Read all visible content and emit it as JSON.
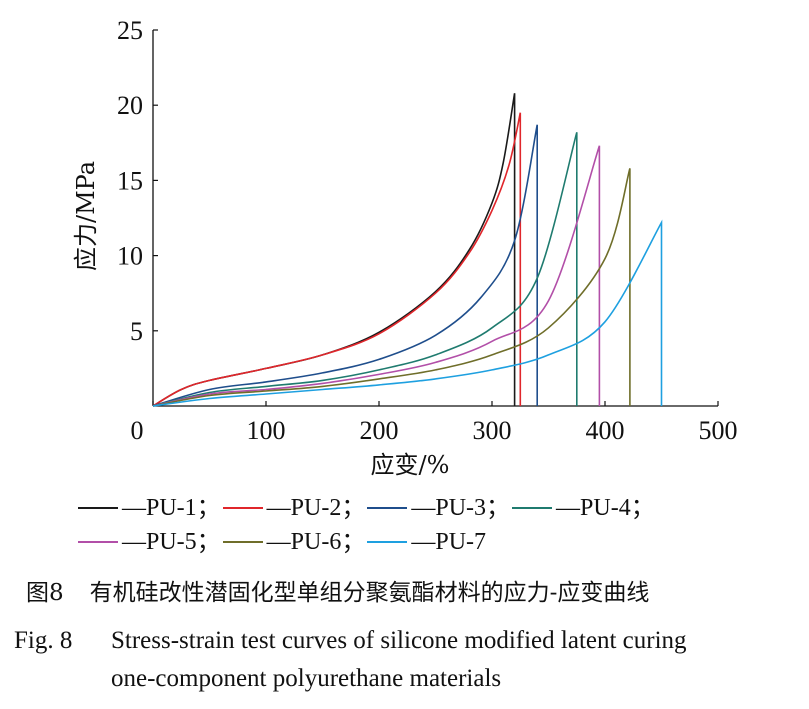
{
  "chart_data": {
    "type": "line",
    "xlabel": "应变/%",
    "ylabel": "应力/MPa",
    "xlim": [
      0,
      500
    ],
    "ylim": [
      0,
      25
    ],
    "xticks": [
      "0",
      "100",
      "200",
      "300",
      "400",
      "500"
    ],
    "yticks": [
      "5",
      "10",
      "15",
      "20",
      "25"
    ],
    "grid": false,
    "legend_position": "bottom",
    "series": [
      {
        "name": "—PU-1；",
        "color": "#1a1a1a",
        "x": [
          0,
          25,
          50,
          100,
          150,
          200,
          250,
          280,
          300,
          310,
          320
        ],
        "y": [
          0,
          1.1,
          1.7,
          2.5,
          3.4,
          4.9,
          7.6,
          10.4,
          13.5,
          16.2,
          20.8
        ],
        "break_x": 320
      },
      {
        "name": "—PU-2；",
        "color": "#e0262b",
        "x": [
          0,
          25,
          50,
          100,
          150,
          200,
          250,
          280,
          300,
          315,
          325
        ],
        "y": [
          0,
          1.1,
          1.7,
          2.5,
          3.4,
          4.8,
          7.5,
          10.2,
          13.0,
          16.0,
          19.5
        ],
        "break_x": 325
      },
      {
        "name": "—PU-3；",
        "color": "#1f4e8c",
        "x": [
          0,
          50,
          100,
          150,
          200,
          250,
          290,
          320,
          340
        ],
        "y": [
          0,
          1.1,
          1.6,
          2.2,
          3.1,
          4.7,
          7.2,
          11.0,
          18.7
        ],
        "break_x": 340
      },
      {
        "name": "—PU-4；",
        "color": "#1f7b6f",
        "x": [
          0,
          50,
          100,
          150,
          200,
          250,
          300,
          340,
          375
        ],
        "y": [
          0,
          0.9,
          1.3,
          1.7,
          2.4,
          3.4,
          5.2,
          8.5,
          18.2
        ],
        "break_x": 375
      },
      {
        "name": "—PU-5；",
        "color": "#b24fa8",
        "x": [
          0,
          50,
          100,
          150,
          200,
          250,
          300,
          350,
          395
        ],
        "y": [
          0,
          0.8,
          1.1,
          1.5,
          2.1,
          2.9,
          4.3,
          7.0,
          17.3
        ],
        "break_x": 395
      },
      {
        "name": "—PU-6；",
        "color": "#6f6e2a",
        "x": [
          0,
          50,
          100,
          150,
          200,
          250,
          300,
          350,
          400,
          422
        ],
        "y": [
          0,
          0.7,
          1.0,
          1.3,
          1.8,
          2.4,
          3.4,
          5.2,
          9.8,
          15.8
        ],
        "break_x": 422
      },
      {
        "name": "—PU-7",
        "color": "#1ea0e0",
        "x": [
          0,
          50,
          100,
          150,
          200,
          250,
          300,
          350,
          400,
          450
        ],
        "y": [
          0,
          0.5,
          0.8,
          1.1,
          1.4,
          1.8,
          2.4,
          3.4,
          5.6,
          12.2
        ],
        "break_x": 450
      }
    ]
  },
  "caption": {
    "cn_fig": "图8",
    "cn_text": "有机硅改性潜固化型单组分聚氨酯材料的应力-应变曲线",
    "en_fig": "Fig. 8",
    "en_line1": "Stress-strain test curves of silicone modified latent curing",
    "en_line2": "one-component polyurethane materials"
  }
}
